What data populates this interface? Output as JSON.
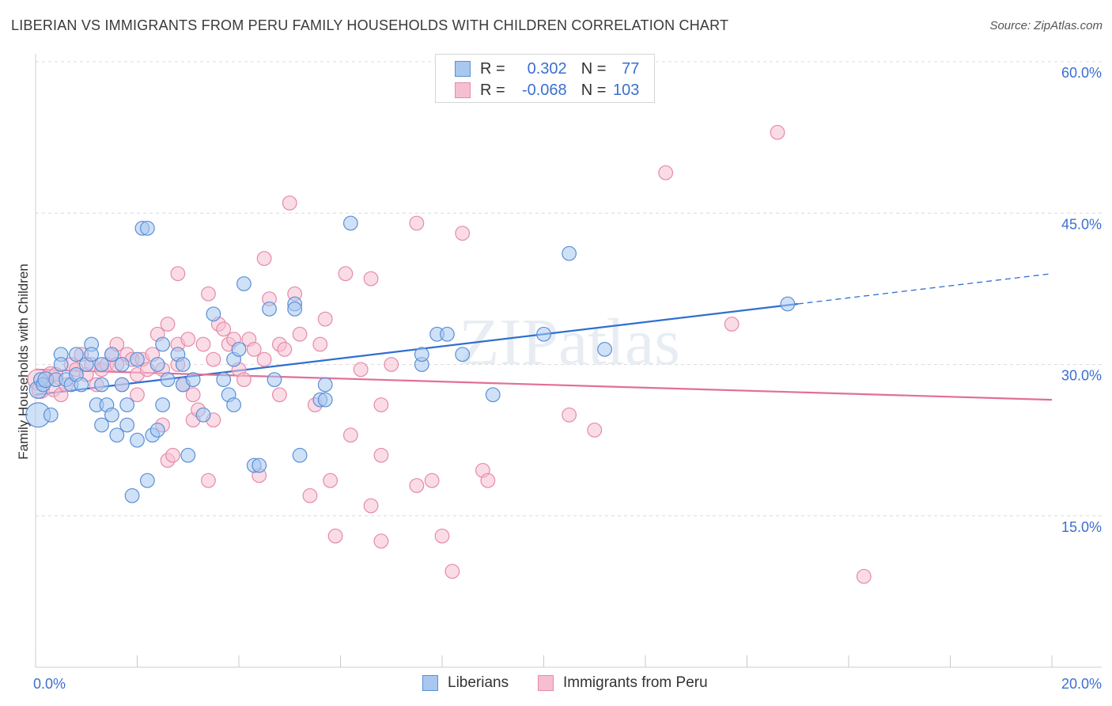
{
  "title": "LIBERIAN VS IMMIGRANTS FROM PERU FAMILY HOUSEHOLDS WITH CHILDREN CORRELATION CHART",
  "source": "Source: ZipAtlas.com",
  "watermark": "ZIPatlas",
  "colors": {
    "blue_fill": "#a8c8f0",
    "blue_stroke": "#5b8fd6",
    "blue_line": "#2f6fcf",
    "pink_fill": "#f6bfd1",
    "pink_stroke": "#e68aa8",
    "pink_line": "#e26f99",
    "axis_text": "#3b6fd1",
    "grid": "#dcdcdc"
  },
  "legend": {
    "rows": [
      {
        "r_label": "R =",
        "r_value": "0.302",
        "n_label": "N =",
        "n_value": "77",
        "color": "blue"
      },
      {
        "r_label": "R =",
        "r_value": "-0.068",
        "n_label": "N =",
        "n_value": "103",
        "color": "pink"
      }
    ]
  },
  "bottom_legend": [
    "Liberians",
    "Immigrants from Peru"
  ],
  "chart_data": {
    "type": "scatter",
    "title": "LIBERIAN VS IMMIGRANTS FROM PERU FAMILY HOUSEHOLDS WITH CHILDREN CORRELATION CHART",
    "xlabel": "",
    "ylabel": "Family Households with Children",
    "xlim": [
      0,
      20
    ],
    "ylim": [
      0,
      60
    ],
    "x_tick_labels": [
      "0.0%",
      "20.0%"
    ],
    "y_tick_labels": [
      "15.0%",
      "30.0%",
      "45.0%",
      "60.0%"
    ],
    "y_ticks": [
      15,
      30,
      45,
      60
    ],
    "series": [
      {
        "name": "Liberians",
        "R": 0.302,
        "N": 77,
        "trend": {
          "x0": 0,
          "y0": 27.0,
          "x1": 15.0,
          "y1": 36.0,
          "dashed_to_x": 20.0,
          "dashed_to_y": 39.0
        },
        "points": [
          [
            0.05,
            25.0,
            14
          ],
          [
            0.05,
            27.5,
            10
          ],
          [
            0.1,
            28.5,
            8
          ],
          [
            0.15,
            28.0,
            8
          ],
          [
            0.2,
            28.5,
            9
          ],
          [
            0.3,
            25.0,
            8
          ],
          [
            0.4,
            28.5,
            8
          ],
          [
            0.5,
            31.0,
            8
          ],
          [
            0.5,
            30.0,
            8
          ],
          [
            0.6,
            28.5,
            8
          ],
          [
            0.7,
            28.0,
            8
          ],
          [
            0.8,
            29.0,
            8
          ],
          [
            0.8,
            31.0,
            8
          ],
          [
            0.9,
            28.0,
            8
          ],
          [
            1.0,
            30.0,
            8
          ],
          [
            1.1,
            32.0,
            8
          ],
          [
            1.1,
            31.0,
            8
          ],
          [
            1.2,
            26.0,
            8
          ],
          [
            1.3,
            28.0,
            8
          ],
          [
            1.3,
            30.0,
            8
          ],
          [
            1.3,
            24.0,
            8
          ],
          [
            1.4,
            26.0,
            8
          ],
          [
            1.5,
            25.0,
            8
          ],
          [
            1.5,
            31.0,
            8
          ],
          [
            1.6,
            23.0,
            8
          ],
          [
            1.7,
            28.0,
            8
          ],
          [
            1.7,
            30.0,
            8
          ],
          [
            1.8,
            24.0,
            8
          ],
          [
            1.8,
            26.0,
            8
          ],
          [
            1.9,
            17.0,
            8
          ],
          [
            2.0,
            30.5,
            8
          ],
          [
            2.0,
            22.5,
            8
          ],
          [
            2.1,
            43.5,
            8
          ],
          [
            2.2,
            43.5,
            8
          ],
          [
            2.2,
            18.5,
            8
          ],
          [
            2.3,
            23.0,
            8
          ],
          [
            2.4,
            30.0,
            8
          ],
          [
            2.4,
            23.5,
            8
          ],
          [
            2.5,
            32.0,
            8
          ],
          [
            2.5,
            26.0,
            8
          ],
          [
            2.6,
            28.5,
            8
          ],
          [
            2.8,
            31.0,
            8
          ],
          [
            2.9,
            28.0,
            8
          ],
          [
            2.9,
            30.0,
            8
          ],
          [
            3.0,
            21.0,
            8
          ],
          [
            3.1,
            28.5,
            8
          ],
          [
            3.3,
            25.0,
            8
          ],
          [
            3.5,
            35.0,
            8
          ],
          [
            3.7,
            28.5,
            8
          ],
          [
            3.8,
            27.0,
            8
          ],
          [
            3.9,
            26.0,
            8
          ],
          [
            3.9,
            30.5,
            8
          ],
          [
            4.0,
            31.5,
            8
          ],
          [
            4.1,
            38.0,
            8
          ],
          [
            4.3,
            20.0,
            8
          ],
          [
            4.4,
            20.0,
            8
          ],
          [
            4.6,
            35.5,
            8
          ],
          [
            4.7,
            28.5,
            8
          ],
          [
            5.1,
            36.0,
            8
          ],
          [
            5.1,
            35.5,
            8
          ],
          [
            5.2,
            21.0,
            8
          ],
          [
            5.6,
            26.5,
            8
          ],
          [
            5.7,
            28.0,
            8
          ],
          [
            5.7,
            26.5,
            8
          ],
          [
            6.2,
            44.0,
            8
          ],
          [
            7.6,
            30.0,
            8
          ],
          [
            7.6,
            31.0,
            8
          ],
          [
            7.9,
            33.0,
            8
          ],
          [
            8.1,
            33.0,
            8
          ],
          [
            8.4,
            31.0,
            8
          ],
          [
            9.0,
            27.0,
            8
          ],
          [
            10.0,
            33.0,
            8
          ],
          [
            10.5,
            41.0,
            8
          ],
          [
            11.2,
            31.5,
            8
          ],
          [
            14.8,
            36.0,
            8
          ]
        ]
      },
      {
        "name": "Immigrants from Peru",
        "R": -0.068,
        "N": 103,
        "trend": {
          "x0": 0,
          "y0": 29.5,
          "x1": 20.0,
          "y1": 26.5
        },
        "points": [
          [
            0.05,
            28.5,
            12
          ],
          [
            0.1,
            27.5,
            10
          ],
          [
            0.2,
            28.5,
            9
          ],
          [
            0.3,
            29.0,
            9
          ],
          [
            0.35,
            27.5,
            8
          ],
          [
            0.4,
            29.0,
            8
          ],
          [
            0.5,
            27.0,
            8
          ],
          [
            0.6,
            28.0,
            8
          ],
          [
            0.7,
            30.0,
            8
          ],
          [
            0.8,
            29.5,
            8
          ],
          [
            0.9,
            31.0,
            8
          ],
          [
            1.0,
            29.0,
            8
          ],
          [
            1.1,
            30.0,
            8
          ],
          [
            1.2,
            28.0,
            8
          ],
          [
            1.3,
            29.5,
            8
          ],
          [
            1.4,
            30.0,
            8
          ],
          [
            1.5,
            31.0,
            8
          ],
          [
            1.6,
            30.0,
            8
          ],
          [
            1.6,
            32.0,
            8
          ],
          [
            1.7,
            28.0,
            8
          ],
          [
            1.8,
            31.0,
            8
          ],
          [
            1.9,
            30.5,
            8
          ],
          [
            2.0,
            29.0,
            8
          ],
          [
            2.0,
            27.0,
            8
          ],
          [
            2.1,
            30.5,
            8
          ],
          [
            2.2,
            29.5,
            8
          ],
          [
            2.3,
            31.0,
            8
          ],
          [
            2.4,
            33.0,
            8
          ],
          [
            2.5,
            29.5,
            8
          ],
          [
            2.5,
            24.0,
            8
          ],
          [
            2.6,
            34.0,
            8
          ],
          [
            2.6,
            20.5,
            8
          ],
          [
            2.7,
            21.0,
            8
          ],
          [
            2.8,
            30.0,
            8
          ],
          [
            2.8,
            32.0,
            8
          ],
          [
            2.8,
            39.0,
            8
          ],
          [
            2.9,
            28.0,
            8
          ],
          [
            3.0,
            32.5,
            8
          ],
          [
            3.1,
            27.0,
            8
          ],
          [
            3.1,
            24.5,
            8
          ],
          [
            3.2,
            25.5,
            8
          ],
          [
            3.3,
            32.0,
            8
          ],
          [
            3.4,
            37.0,
            8
          ],
          [
            3.4,
            18.5,
            8
          ],
          [
            3.5,
            30.5,
            8
          ],
          [
            3.5,
            24.5,
            8
          ],
          [
            3.6,
            34.0,
            8
          ],
          [
            3.7,
            33.5,
            8
          ],
          [
            3.8,
            32.0,
            8
          ],
          [
            3.9,
            32.5,
            8
          ],
          [
            4.0,
            29.5,
            8
          ],
          [
            4.1,
            28.5,
            8
          ],
          [
            4.2,
            32.5,
            8
          ],
          [
            4.3,
            31.5,
            8
          ],
          [
            4.4,
            19.0,
            8
          ],
          [
            4.5,
            30.5,
            8
          ],
          [
            4.5,
            40.5,
            8
          ],
          [
            4.6,
            36.5,
            8
          ],
          [
            4.8,
            32.0,
            8
          ],
          [
            4.8,
            27.0,
            8
          ],
          [
            4.9,
            31.5,
            8
          ],
          [
            5.0,
            46.0,
            8
          ],
          [
            5.1,
            37.0,
            8
          ],
          [
            5.2,
            33.0,
            8
          ],
          [
            5.4,
            17.0,
            8
          ],
          [
            5.5,
            26.0,
            8
          ],
          [
            5.6,
            32.0,
            8
          ],
          [
            5.7,
            34.5,
            8
          ],
          [
            5.8,
            18.5,
            8
          ],
          [
            5.9,
            13.0,
            8
          ],
          [
            6.1,
            39.0,
            8
          ],
          [
            6.2,
            23.0,
            8
          ],
          [
            6.4,
            29.5,
            8
          ],
          [
            6.6,
            38.5,
            8
          ],
          [
            6.6,
            16.0,
            8
          ],
          [
            6.8,
            12.5,
            8
          ],
          [
            6.8,
            26.0,
            8
          ],
          [
            6.8,
            21.0,
            8
          ],
          [
            7.0,
            30.0,
            8
          ],
          [
            7.5,
            44.0,
            8
          ],
          [
            7.5,
            18.0,
            8
          ],
          [
            7.8,
            18.5,
            8
          ],
          [
            8.0,
            13.0,
            8
          ],
          [
            8.2,
            9.5,
            8
          ],
          [
            8.4,
            43.0,
            8
          ],
          [
            8.8,
            19.5,
            8
          ],
          [
            8.9,
            18.5,
            8
          ],
          [
            10.5,
            25.0,
            8
          ],
          [
            11.0,
            23.5,
            8
          ],
          [
            12.4,
            49.0,
            8
          ],
          [
            13.7,
            34.0,
            8
          ],
          [
            14.6,
            53.0,
            8
          ],
          [
            16.3,
            9.0,
            8
          ]
        ]
      }
    ]
  }
}
